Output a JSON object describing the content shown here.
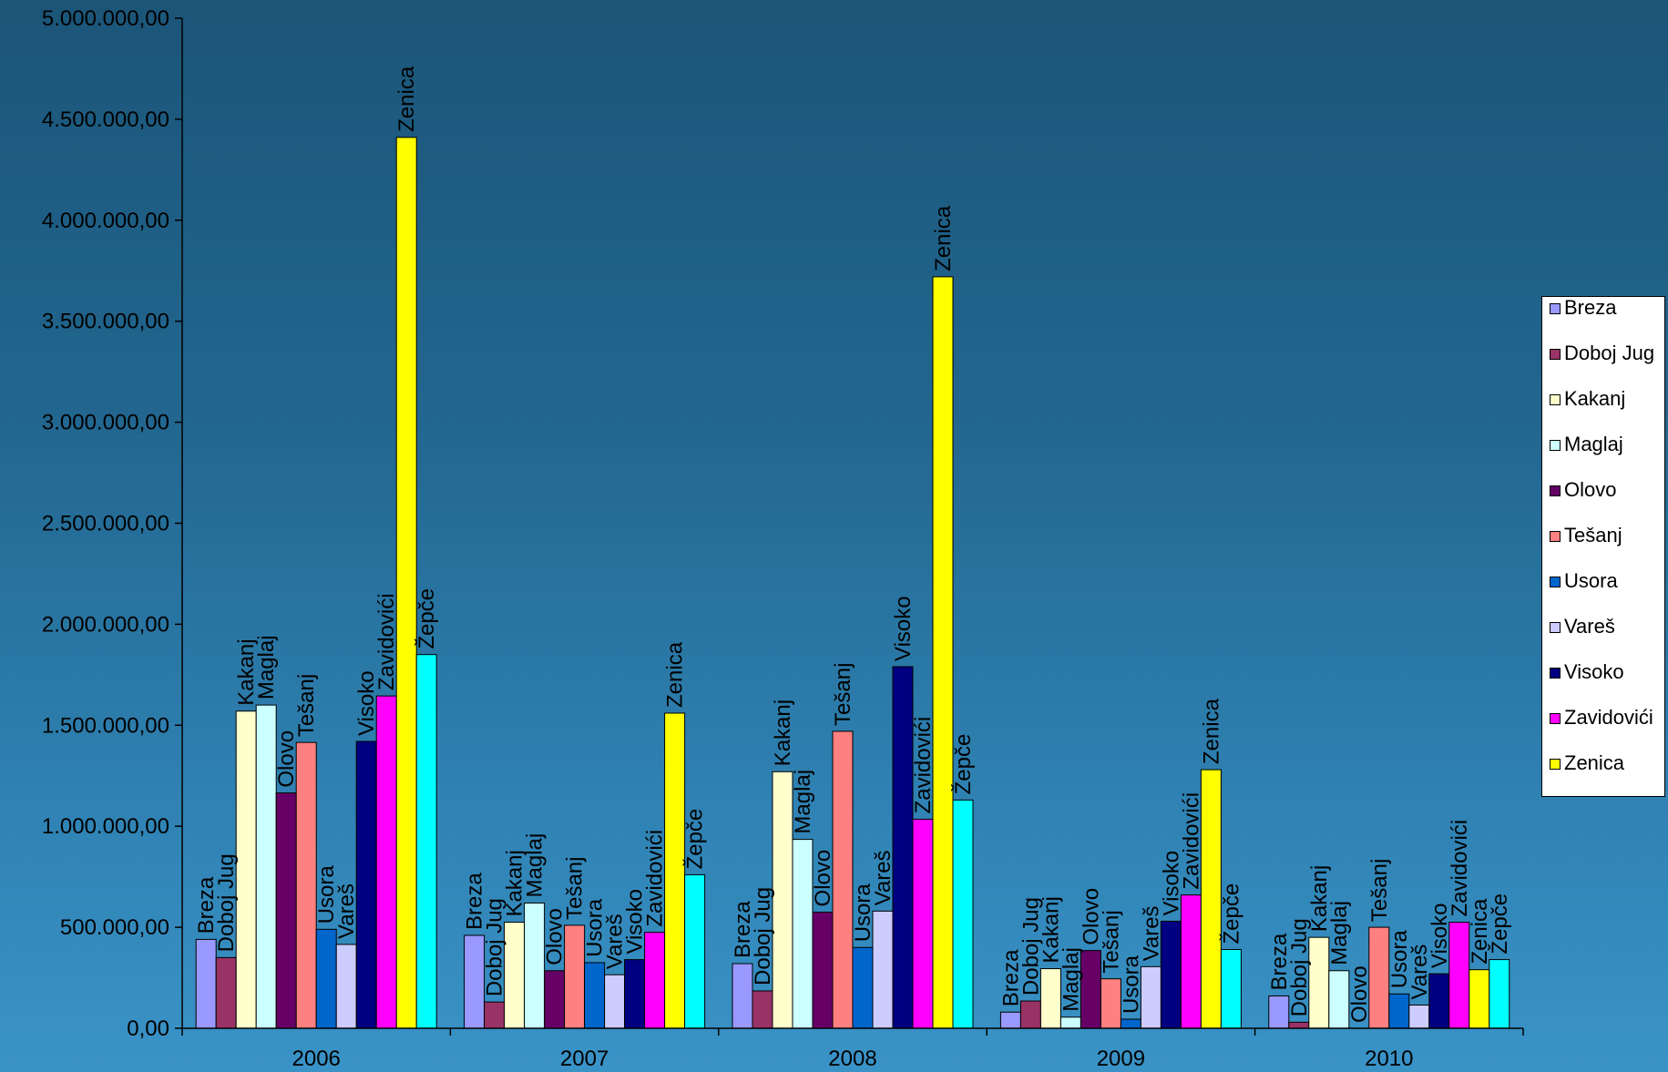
{
  "chart_data": {
    "type": "bar",
    "categories": [
      "2006",
      "2007",
      "2008",
      "2009",
      "2010"
    ],
    "ylim": [
      0,
      5000000
    ],
    "yticks": [
      "0,00",
      "500.000,00",
      "1.000.000,00",
      "1.500.000,00",
      "2.000.000,00",
      "2.500.000,00",
      "3.000.000,00",
      "3.500.000,00",
      "4.000.000,00",
      "4.500.000,00",
      "5.000.000,00"
    ],
    "legend_position": "right",
    "series": [
      {
        "name": "Breza",
        "legend": "Breza",
        "color": "#9999ff",
        "values": [
          440000,
          460000,
          320000,
          80000,
          160000
        ]
      },
      {
        "name": "Doboj Jug",
        "legend": "Doboj Jug",
        "color": "#993366",
        "values": [
          350000,
          130000,
          185000,
          135000,
          30000
        ]
      },
      {
        "name": "Kakanj",
        "legend": "Kakanj",
        "color": "#ffffcc",
        "values": [
          1570000,
          525000,
          1270000,
          295000,
          450000
        ]
      },
      {
        "name": "Maglaj",
        "legend": "Maglaj",
        "color": "#ccffff",
        "values": [
          1600000,
          620000,
          935000,
          55000,
          285000
        ]
      },
      {
        "name": "Olovo",
        "legend": "Olovo",
        "color": "#660066",
        "values": [
          1165000,
          285000,
          575000,
          385000,
          0
        ]
      },
      {
        "name": "Tešanj",
        "legend": "Tešanj",
        "color": "#ff8080",
        "values": [
          1415000,
          510000,
          1470000,
          245000,
          500000
        ]
      },
      {
        "name": "Usora",
        "legend": "Usora",
        "color": "#0066cc",
        "values": [
          490000,
          325000,
          400000,
          45000,
          170000
        ]
      },
      {
        "name": "Vareš",
        "legend": "Vareš",
        "color": "#ccccff",
        "values": [
          415000,
          265000,
          580000,
          305000,
          115000
        ]
      },
      {
        "name": "Visoko",
        "legend": "Visoko",
        "color": "#000080",
        "values": [
          1420000,
          340000,
          1790000,
          530000,
          270000
        ]
      },
      {
        "name": "Zavidovići",
        "legend": "Zavidovići",
        "color": "#ff00ff",
        "values": [
          1645000,
          475000,
          1035000,
          660000,
          525000
        ]
      },
      {
        "name": "Zenica",
        "legend": "Zenica",
        "color": "#ffff00",
        "values": [
          4410000,
          1560000,
          3720000,
          1280000,
          290000
        ]
      },
      {
        "name": "Žepče",
        "legend": "",
        "color": "#00ffff",
        "values": [
          1850000,
          760000,
          1130000,
          390000,
          340000
        ]
      }
    ]
  }
}
